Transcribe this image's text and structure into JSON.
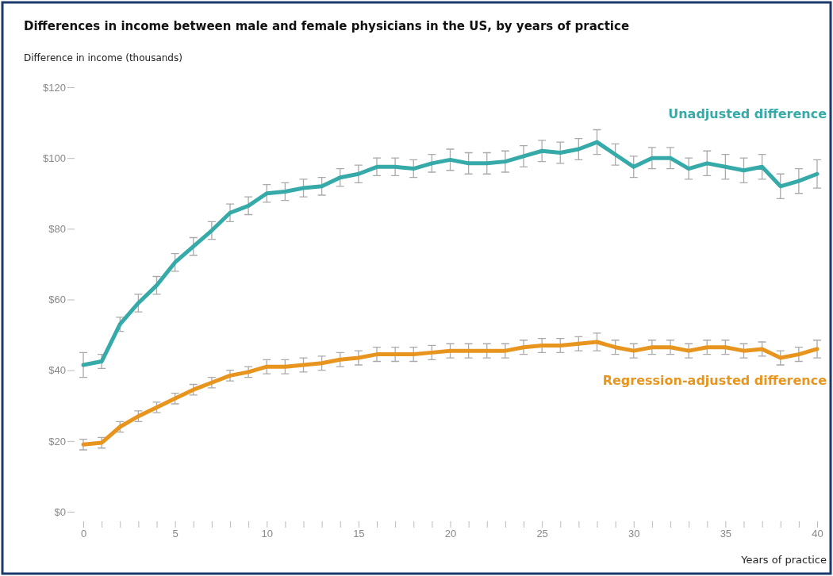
{
  "chart_data": {
    "type": "line",
    "title": "Differences in income between male and female physicians in the US, by years of practice",
    "ylabel": "Difference in income (thousands)",
    "xlabel": "Years of practice",
    "x": [
      0,
      1,
      2,
      3,
      4,
      5,
      6,
      7,
      8,
      9,
      10,
      11,
      12,
      13,
      14,
      15,
      16,
      17,
      18,
      19,
      20,
      21,
      22,
      23,
      24,
      25,
      26,
      27,
      28,
      29,
      30,
      31,
      32,
      33,
      34,
      35,
      36,
      37,
      38,
      39,
      40
    ],
    "series": [
      {
        "name": "Unadjusted difference",
        "color": "#35aaa8",
        "values": [
          41.5,
          42.5,
          53,
          59,
          64,
          70.5,
          75,
          79.5,
          84.5,
          86.5,
          90,
          90.5,
          91.5,
          92,
          94.5,
          95.5,
          97.5,
          97.5,
          97,
          98.5,
          99.5,
          98.5,
          98.5,
          99,
          100.5,
          102,
          101.5,
          102.5,
          104.5,
          101,
          97.5,
          100,
          100,
          97,
          98.5,
          97.5,
          96.5,
          97.5,
          92,
          93.5,
          95.5
        ],
        "errors": [
          3.5,
          2,
          2,
          2.5,
          2.5,
          2.5,
          2.5,
          2.5,
          2.5,
          2.5,
          2.5,
          2.5,
          2.5,
          2.5,
          2.5,
          2.5,
          2.5,
          2.5,
          2.5,
          2.5,
          3,
          3,
          3,
          3,
          3,
          3,
          3,
          3,
          3.5,
          3,
          3,
          3,
          3,
          3,
          3.5,
          3.5,
          3.5,
          3.5,
          3.5,
          3.5,
          4
        ]
      },
      {
        "name": "Regression-adjusted difference",
        "color": "#e8951f",
        "values": [
          19,
          19.5,
          24,
          27,
          29.5,
          32,
          34.5,
          36.5,
          38.5,
          39.5,
          41,
          41,
          41.5,
          42,
          43,
          43.5,
          44.5,
          44.5,
          44.5,
          45,
          45.5,
          45.5,
          45.5,
          45.5,
          46.5,
          47,
          47,
          47.5,
          48,
          46.5,
          45.5,
          46.5,
          46.5,
          45.5,
          46.5,
          46.5,
          45.5,
          46,
          43.5,
          44.5,
          46
        ],
        "errors": [
          1.5,
          1.5,
          1.5,
          1.5,
          1.5,
          1.5,
          1.5,
          1.5,
          1.5,
          1.5,
          2,
          2,
          2,
          2,
          2,
          2,
          2,
          2,
          2,
          2,
          2,
          2,
          2,
          2,
          2,
          2,
          2,
          2,
          2.5,
          2,
          2,
          2,
          2,
          2,
          2,
          2,
          2,
          2,
          2,
          2,
          2.5
        ]
      }
    ],
    "xlim": [
      0,
      40
    ],
    "ylim": [
      0,
      120
    ],
    "xticks": [
      0,
      {
        "value": 1,
        "label": null
      },
      {
        "value": 2,
        "label": null
      },
      {
        "value": 3,
        "label": null
      },
      {
        "value": 4,
        "label": null
      },
      5,
      {
        "value": 6,
        "label": null
      },
      {
        "value": 7,
        "label": null
      },
      {
        "value": 8,
        "label": null
      },
      {
        "value": 9,
        "label": null
      },
      10,
      {
        "value": 11,
        "label": null
      },
      {
        "value": 12,
        "label": null
      },
      {
        "value": 13,
        "label": null
      },
      {
        "value": 14,
        "label": null
      },
      15,
      {
        "value": 16,
        "label": null
      },
      {
        "value": 17,
        "label": null
      },
      {
        "value": 18,
        "label": null
      },
      {
        "value": 19,
        "label": null
      },
      20,
      {
        "value": 21,
        "label": null
      },
      {
        "value": 22,
        "label": null
      },
      {
        "value": 23,
        "label": null
      },
      {
        "value": 24,
        "label": null
      },
      25,
      {
        "value": 26,
        "label": null
      },
      {
        "value": 27,
        "label": null
      },
      {
        "value": 28,
        "label": null
      },
      {
        "value": 29,
        "label": null
      },
      30,
      {
        "value": 31,
        "label": null
      },
      {
        "value": 32,
        "label": null
      },
      {
        "value": 33,
        "label": null
      },
      {
        "value": 34,
        "label": null
      },
      35,
      {
        "value": 36,
        "label": null
      },
      {
        "value": 37,
        "label": null
      },
      {
        "value": 38,
        "label": null
      },
      {
        "value": 39,
        "label": null
      },
      40
    ],
    "yticks": [
      {
        "value": 0,
        "label": "$0"
      },
      {
        "value": 20,
        "label": "$20"
      },
      {
        "value": 40,
        "label": "$40"
      },
      {
        "value": 60,
        "label": "$60"
      },
      {
        "value": 80,
        "label": "$80"
      },
      {
        "value": 100,
        "label": "$100"
      },
      {
        "value": 120,
        "label": "$120"
      }
    ],
    "grid": false,
    "marker": "none",
    "line_style": "solid"
  }
}
